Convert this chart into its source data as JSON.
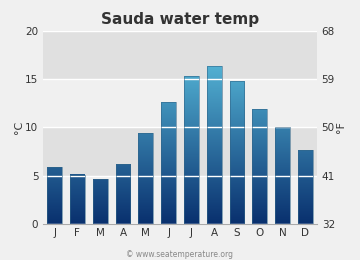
{
  "title": "Sauda water temp",
  "months": [
    "J",
    "F",
    "M",
    "A",
    "M",
    "J",
    "J",
    "A",
    "S",
    "O",
    "N",
    "D"
  ],
  "values_c": [
    5.9,
    5.1,
    4.6,
    6.2,
    9.4,
    12.6,
    15.3,
    16.4,
    14.8,
    11.9,
    10.0,
    7.6
  ],
  "ylim_c": [
    0,
    20
  ],
  "yticks_c": [
    0,
    5,
    10,
    15,
    20
  ],
  "yticks_f": [
    32,
    41,
    50,
    59,
    68
  ],
  "ylabel_left": "°C",
  "ylabel_right": "°F",
  "bar_color_top": "#62cce8",
  "bar_color_bottom": "#09306e",
  "bg_color": "#e0e0e0",
  "band_color": "#ebebeb",
  "fig_bg_color": "#f0f0f0",
  "watermark": "© www.seatemperature.org",
  "title_fontsize": 11,
  "tick_fontsize": 7.5,
  "label_fontsize": 8,
  "bar_width": 0.65
}
